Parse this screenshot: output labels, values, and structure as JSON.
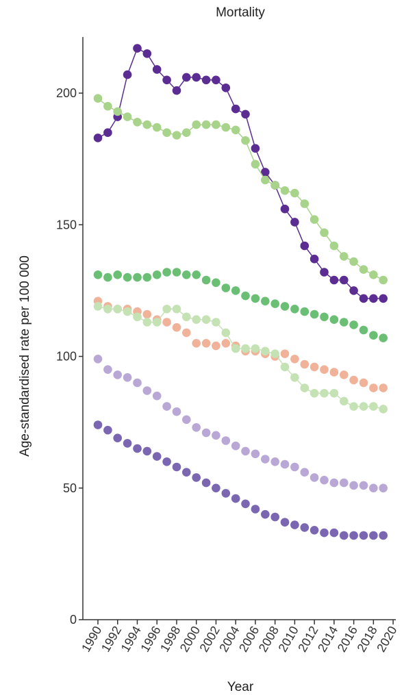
{
  "chart_data": {
    "type": "line",
    "title": "Mortality",
    "xlabel": "Year",
    "ylabel": "Age-standardised rate per 100 000",
    "x": [
      1990,
      1991,
      1992,
      1993,
      1994,
      1995,
      1996,
      1997,
      1998,
      1999,
      2000,
      2001,
      2002,
      2003,
      2004,
      2005,
      2006,
      2007,
      2008,
      2009,
      2010,
      2011,
      2012,
      2013,
      2014,
      2015,
      2016,
      2017,
      2018,
      2019
    ],
    "xlim": [
      1989,
      2020
    ],
    "ylim": [
      0,
      220
    ],
    "xticks": [
      1990,
      1992,
      1994,
      1996,
      1998,
      2000,
      2002,
      2004,
      2006,
      2008,
      2010,
      2012,
      2014,
      2016,
      2018,
      2020
    ],
    "yticks": [
      0,
      50,
      100,
      150,
      200
    ],
    "grid": false,
    "legend": "none",
    "series": [
      {
        "color": "#5b2c91",
        "line": true,
        "values": [
          183,
          185,
          191,
          207,
          217,
          215,
          209,
          205,
          201,
          206,
          206,
          205,
          205,
          202,
          194,
          192,
          179,
          170,
          165,
          156,
          151,
          142,
          137,
          132,
          129,
          129,
          125,
          122,
          122,
          122
        ]
      },
      {
        "color": "#a7d38a",
        "line": true,
        "values": [
          198,
          195,
          193,
          191,
          189,
          188,
          187,
          185,
          184,
          185,
          188,
          188,
          188,
          187,
          186,
          182,
          173,
          167,
          165,
          163,
          162,
          158,
          152,
          147,
          142,
          138,
          136,
          133,
          131,
          129
        ]
      },
      {
        "color": "#6abf75",
        "line": false,
        "values": [
          131,
          130,
          131,
          130,
          130,
          130,
          131,
          132,
          132,
          131,
          131,
          129,
          128,
          126,
          125,
          123,
          122,
          121,
          120,
          119,
          118,
          117,
          116,
          115,
          114,
          113,
          112,
          110,
          108,
          107
        ]
      },
      {
        "color": "#f0b39a",
        "line": false,
        "values": [
          121,
          119,
          118,
          118,
          117,
          116,
          114,
          113,
          111,
          109,
          105,
          105,
          104,
          105,
          104,
          102,
          102,
          101,
          100,
          101,
          99,
          97,
          96,
          95,
          94,
          93,
          91,
          90,
          88,
          88
        ]
      },
      {
        "color": "#c5e2b5",
        "line": true,
        "values": [
          119,
          118,
          118,
          117,
          115,
          113,
          113,
          118,
          118,
          115,
          114,
          114,
          113,
          109,
          103,
          103,
          103,
          102,
          101,
          96,
          92,
          88,
          86,
          86,
          86,
          83,
          81,
          81,
          81,
          80
        ]
      },
      {
        "color": "#b9a8d6",
        "line": false,
        "values": [
          99,
          95,
          93,
          92,
          90,
          87,
          85,
          81,
          79,
          76,
          73,
          71,
          70,
          68,
          66,
          64,
          63,
          61,
          60,
          59,
          58,
          56,
          54,
          53,
          52,
          52,
          51,
          51,
          50,
          50
        ]
      },
      {
        "color": "#7b66b2",
        "line": false,
        "values": [
          74,
          72,
          69,
          67,
          65,
          64,
          62,
          60,
          58,
          56,
          54,
          52,
          50,
          48,
          46,
          44,
          42,
          40,
          39,
          37,
          36,
          35,
          34,
          33,
          33,
          32,
          32,
          32,
          32,
          32
        ]
      }
    ]
  }
}
